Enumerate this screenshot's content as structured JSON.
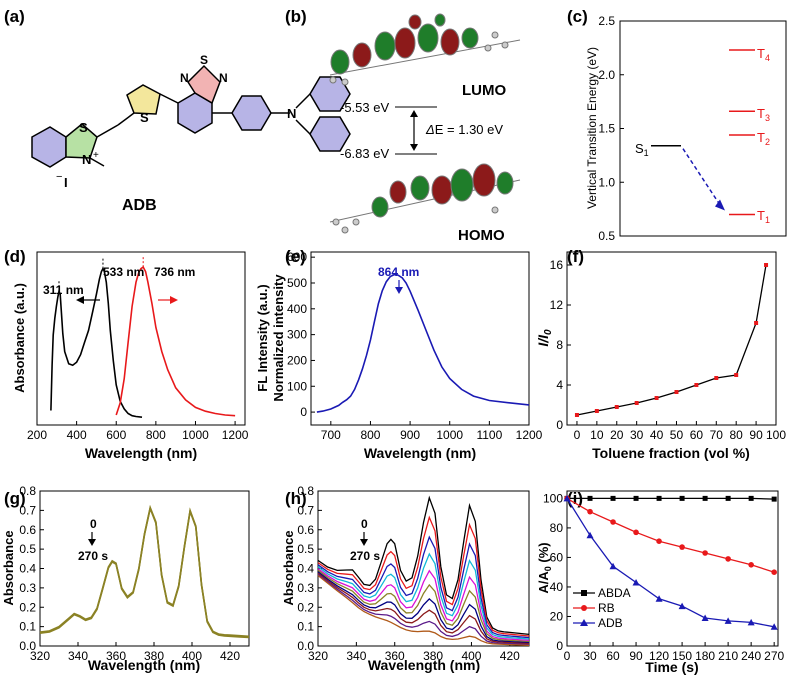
{
  "colors": {
    "black": "#000000",
    "red": "#e8191b",
    "blue": "#1a1ab4",
    "olive": "#8b8225",
    "green_orb": "#1f7d2a",
    "red_orb": "#8c1a1a"
  },
  "panels": {
    "a": {
      "label": "(a)",
      "title": "ADB",
      "atoms": {
        "S1": "S",
        "N1": "N",
        "plus": "+",
        "methyl_hint": "",
        "iodide": "I",
        "minus": "−",
        "S2": "S",
        "N2": "N",
        "S3": "S",
        "N3": "N",
        "N4": "N"
      }
    },
    "b": {
      "label": "(b)",
      "lumo": "LUMO",
      "homo": "HOMO",
      "lumo_energy": "-5.53 eV",
      "homo_energy": "-6.83 eV",
      "gap_delta": "Δ",
      "gap_text": "E = 1.30 eV"
    },
    "c": {
      "label": "(c)",
      "ylabel": "Vertical Transition Energy (eV)",
      "s1": "S",
      "s1_sub": "1",
      "states": [
        {
          "name": "T",
          "sub": "4"
        },
        {
          "name": "T",
          "sub": "3"
        },
        {
          "name": "T",
          "sub": "2"
        },
        {
          "name": "T",
          "sub": "1"
        }
      ]
    },
    "d": {
      "label": "(d)",
      "ylabel": "Absorbance (a.u.)",
      "xlabel": "Wavelength (nm)",
      "peaks": [
        "311 nm",
        "533 nm",
        "736 nm"
      ]
    },
    "e": {
      "label": "(e)",
      "ylabel1": "FL Intensity (a.u.)",
      "ylabel2": "Normalized intensity",
      "xlabel": "Wavelength (nm)",
      "peak": "864 nm"
    },
    "f": {
      "label": "(f)",
      "ylabel_main": "I/I",
      "ylabel_sub": "0",
      "xlabel": "Toluene fraction (vol %)"
    },
    "g": {
      "label": "(g)",
      "ylabel": "Absorbance",
      "xlabel": "Wavelength (nm)",
      "arrow_top": "0",
      "arrow_bottom": "270 s"
    },
    "h": {
      "label": "(h)",
      "ylabel": "Absorbance",
      "xlabel": "Wavelength (nm)",
      "arrow_top": "0",
      "arrow_bottom": "270 s"
    },
    "i": {
      "label": "(i)",
      "ylabel_main": "A/A",
      "ylabel_sub": "0",
      "ylabel_unit": " (%)",
      "xlabel": "Time (s)",
      "legend": [
        "ABDA",
        "RB",
        "ADB"
      ]
    }
  },
  "chart_data": [
    {
      "id": "c",
      "type": "scatter",
      "title": "",
      "ylabel": "Vertical Transition Energy (eV)",
      "ylim": [
        0.5,
        2.5
      ],
      "yticks": [
        "0.5",
        "1.0",
        "1.5",
        "2.0",
        "2.5"
      ],
      "levels": [
        {
          "name": "S1",
          "value": 1.34
        },
        {
          "name": "T4",
          "value": 2.23
        },
        {
          "name": "T3",
          "value": 1.66
        },
        {
          "name": "T2",
          "value": 1.44
        },
        {
          "name": "T1",
          "value": 0.7
        }
      ]
    },
    {
      "id": "d",
      "type": "line",
      "xlabel": "Wavelength (nm)",
      "ylabel": "Absorbance (a.u.)",
      "xlim": [
        200,
        1250
      ],
      "xticks": [
        "200",
        "400",
        "600",
        "800",
        "1000",
        "1200"
      ],
      "series": [
        {
          "name": "absorption",
          "color": "#000000",
          "x": [
            270,
            276,
            282,
            290,
            298,
            305,
            311,
            317,
            322,
            330,
            340,
            360,
            380,
            400,
            420,
            440,
            460,
            480,
            500,
            515,
            525,
            533,
            540,
            550,
            560,
            570,
            585,
            600,
            620,
            640,
            660,
            680,
            700,
            730
          ],
          "y": [
            0.05,
            0.35,
            0.55,
            0.66,
            0.74,
            0.8,
            0.84,
            0.82,
            0.72,
            0.56,
            0.44,
            0.36,
            0.35,
            0.37,
            0.42,
            0.5,
            0.58,
            0.7,
            0.82,
            0.92,
            0.97,
            0.99,
            0.97,
            0.9,
            0.76,
            0.58,
            0.38,
            0.22,
            0.11,
            0.06,
            0.03,
            0.015,
            0.01,
            0.005
          ]
        },
        {
          "name": "emission",
          "color": "#e8191b",
          "x": [
            600,
            620,
            640,
            660,
            680,
            700,
            715,
            725,
            736,
            748,
            760,
            780,
            800,
            830,
            860,
            900,
            950,
            1000,
            1050,
            1100,
            1150,
            1200
          ],
          "y": [
            0.02,
            0.1,
            0.26,
            0.5,
            0.74,
            0.9,
            0.97,
            0.99,
            1.0,
            0.97,
            0.9,
            0.76,
            0.6,
            0.44,
            0.32,
            0.2,
            0.12,
            0.07,
            0.045,
            0.03,
            0.02,
            0.015
          ]
        }
      ]
    },
    {
      "id": "e",
      "type": "line",
      "xlabel": "Wavelength (nm)",
      "ylabel": "Normalized intensity",
      "xlim": [
        650,
        1200
      ],
      "ylim": [
        -50,
        620
      ],
      "xticks": [
        "700",
        "800",
        "900",
        "1000",
        "1100",
        "1200"
      ],
      "yticks": [
        "0",
        "100",
        "200",
        "300",
        "400",
        "500",
        "600"
      ],
      "series": [
        {
          "name": "FL",
          "color": "#1a1ab4",
          "x": [
            665,
            680,
            700,
            720,
            730,
            740,
            750,
            760,
            770,
            780,
            790,
            800,
            810,
            820,
            830,
            840,
            850,
            860,
            864,
            870,
            880,
            890,
            900,
            920,
            940,
            960,
            980,
            1000,
            1030,
            1060,
            1100,
            1150,
            1200
          ],
          "y": [
            0,
            4,
            12,
            26,
            38,
            48,
            62,
            88,
            125,
            168,
            220,
            280,
            350,
            420,
            470,
            505,
            525,
            532,
            532,
            530,
            520,
            500,
            468,
            395,
            318,
            240,
            175,
            130,
            88,
            62,
            45,
            36,
            28
          ]
        }
      ]
    },
    {
      "id": "f",
      "type": "line",
      "xlabel": "Toluene fraction (vol %)",
      "ylabel": "I/I0",
      "xlim": [
        -5,
        100
      ],
      "ylim": [
        0,
        17.3
      ],
      "xticks": [
        "0",
        "10",
        "20",
        "30",
        "40",
        "50",
        "60",
        "70",
        "80",
        "90",
        "100"
      ],
      "yticks": [
        "0",
        "4",
        "8",
        "12",
        "16"
      ],
      "series": [
        {
          "name": "I/I0",
          "color": "#000000",
          "marker_color": "#e8191b",
          "x": [
            0,
            10,
            20,
            30,
            40,
            50,
            60,
            70,
            80,
            90,
            95
          ],
          "y": [
            1.0,
            1.4,
            1.8,
            2.2,
            2.7,
            3.3,
            4.0,
            4.7,
            5.0,
            10.2,
            16.0
          ]
        }
      ]
    },
    {
      "id": "g",
      "type": "line",
      "xlabel": "Wavelength (nm)",
      "ylabel": "Absorbance",
      "xlim": [
        320,
        430
      ],
      "ylim": [
        0,
        0.8
      ],
      "xticks": [
        "320",
        "340",
        "360",
        "380",
        "400",
        "420"
      ],
      "yticks": [
        "0.0",
        "0.1",
        "0.2",
        "0.3",
        "0.4",
        "0.5",
        "0.6",
        "0.7",
        "0.8"
      ],
      "series": [
        {
          "name": "0-270 s",
          "color": "#8b8225",
          "x": [
            320,
            325,
            330,
            335,
            338,
            341,
            344,
            347,
            350,
            353,
            356,
            358,
            360,
            363,
            366,
            369,
            372,
            375,
            378,
            381,
            384,
            387,
            390,
            393,
            396,
            399,
            402,
            405,
            408,
            411,
            414,
            417,
            420,
            425,
            430
          ],
          "y": [
            0.072,
            0.078,
            0.1,
            0.142,
            0.168,
            0.156,
            0.138,
            0.148,
            0.195,
            0.3,
            0.408,
            0.44,
            0.428,
            0.3,
            0.255,
            0.28,
            0.4,
            0.58,
            0.715,
            0.64,
            0.37,
            0.228,
            0.212,
            0.312,
            0.515,
            0.7,
            0.62,
            0.32,
            0.13,
            0.076,
            0.062,
            0.058,
            0.056,
            0.053,
            0.05
          ]
        }
      ]
    },
    {
      "id": "h",
      "type": "line",
      "xlabel": "Wavelength (nm)",
      "ylabel": "Absorbance",
      "xlim": [
        320,
        430
      ],
      "ylim": [
        0,
        0.8
      ],
      "xticks": [
        "320",
        "340",
        "360",
        "380",
        "400",
        "420"
      ],
      "yticks": [
        "0.0",
        "0.1",
        "0.2",
        "0.3",
        "0.4",
        "0.5",
        "0.6",
        "0.7",
        "0.8"
      ],
      "times_s": [
        0,
        30,
        60,
        90,
        120,
        150,
        180,
        210,
        240,
        270
      ],
      "series_colors": [
        "#000000",
        "#e8191b",
        "#1a1ab4",
        "#10b8d8",
        "#d811d8",
        "#8b8225",
        "#000080",
        "#8b1a1a",
        "#5a1a8a",
        "#b05a1a"
      ],
      "x": [
        320,
        325,
        330,
        335,
        338,
        341,
        344,
        347,
        350,
        353,
        356,
        358,
        360,
        363,
        366,
        369,
        372,
        375,
        378,
        381,
        384,
        387,
        390,
        393,
        396,
        399,
        402,
        405,
        408,
        411,
        414,
        417,
        420,
        425,
        430
      ],
      "baseline": [
        0.37,
        0.33,
        0.29,
        0.25,
        0.225,
        0.2,
        0.18,
        0.165,
        0.15,
        0.135,
        0.12,
        0.11,
        0.1,
        0.09,
        0.08,
        0.072,
        0.064,
        0.057,
        0.05,
        0.045,
        0.04,
        0.036,
        0.033,
        0.03,
        0.027,
        0.025,
        0.023,
        0.021,
        0.019,
        0.017,
        0.016,
        0.015,
        0.014,
        0.012,
        0.01
      ],
      "structured_abda": [
        0.072,
        0.078,
        0.1,
        0.142,
        0.168,
        0.156,
        0.138,
        0.148,
        0.195,
        0.3,
        0.408,
        0.44,
        0.428,
        0.3,
        0.255,
        0.28,
        0.4,
        0.58,
        0.715,
        0.64,
        0.37,
        0.228,
        0.212,
        0.312,
        0.515,
        0.7,
        0.62,
        0.32,
        0.13,
        0.076,
        0.062,
        0.058,
        0.056,
        0.053,
        0.05
      ],
      "fractions": [
        1.0,
        0.86,
        0.72,
        0.6,
        0.48,
        0.38,
        0.28,
        0.2,
        0.12,
        0.05
      ]
    },
    {
      "id": "i",
      "type": "line",
      "xlabel": "Time (s)",
      "ylabel": "A/A0 (%)",
      "xlim": [
        0,
        275
      ],
      "ylim": [
        0,
        105
      ],
      "xticks": [
        "0",
        "30",
        "60",
        "90",
        "120",
        "150",
        "180",
        "210",
        "240",
        "270"
      ],
      "yticks": [
        "0",
        "20",
        "40",
        "60",
        "80",
        "100"
      ],
      "series": [
        {
          "name": "ABDA",
          "color": "#000000",
          "marker": "square",
          "x": [
            0,
            30,
            60,
            90,
            120,
            150,
            180,
            210,
            240,
            270
          ],
          "y": [
            100,
            100,
            100,
            100,
            100,
            100,
            100,
            100,
            100,
            99.5
          ]
        },
        {
          "name": "RB",
          "color": "#e8191b",
          "marker": "circle",
          "x": [
            0,
            30,
            60,
            90,
            120,
            150,
            180,
            210,
            240,
            270
          ],
          "y": [
            100,
            91,
            84,
            77,
            71,
            67,
            63,
            59,
            55,
            50
          ]
        },
        {
          "name": "ADB",
          "color": "#1a1ab4",
          "marker": "triangle",
          "x": [
            0,
            30,
            60,
            90,
            120,
            150,
            180,
            210,
            240,
            270
          ],
          "y": [
            100,
            75,
            54,
            43,
            32,
            27,
            19,
            17,
            16,
            13
          ]
        }
      ]
    }
  ]
}
